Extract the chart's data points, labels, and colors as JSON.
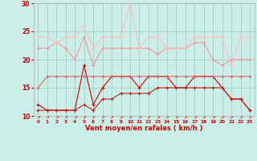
{
  "x": [
    0,
    1,
    2,
    3,
    4,
    5,
    6,
    7,
    8,
    9,
    10,
    11,
    12,
    13,
    14,
    15,
    16,
    17,
    18,
    19,
    20,
    21,
    22,
    23
  ],
  "line1": [
    12,
    11,
    11,
    11,
    11,
    19,
    12,
    15,
    17,
    17,
    17,
    15,
    17,
    17,
    17,
    15,
    15,
    17,
    17,
    17,
    15,
    13,
    13,
    11
  ],
  "line2": [
    11,
    11,
    11,
    11,
    11,
    12,
    11,
    13,
    13,
    14,
    14,
    14,
    14,
    15,
    15,
    15,
    15,
    15,
    15,
    15,
    15,
    13,
    13,
    11
  ],
  "line3": [
    15,
    17,
    17,
    17,
    17,
    17,
    17,
    17,
    17,
    17,
    17,
    17,
    17,
    17,
    17,
    17,
    17,
    17,
    17,
    17,
    17,
    17,
    17,
    17
  ],
  "line4": [
    22,
    22,
    23,
    22,
    20,
    24,
    19,
    22,
    22,
    22,
    22,
    22,
    22,
    21,
    22,
    22,
    22,
    23,
    23,
    20,
    19,
    20,
    20,
    20
  ],
  "line5": [
    24,
    24,
    23,
    24,
    24,
    26,
    22,
    24,
    24,
    24,
    30,
    22,
    24,
    24,
    22,
    22,
    22,
    24,
    24,
    24,
    24,
    19,
    24,
    24
  ],
  "colors": [
    "#cc0000",
    "#bb2222",
    "#dd6666",
    "#ee9999",
    "#ffbbbb"
  ],
  "ylim": [
    10,
    30
  ],
  "yticks": [
    10,
    15,
    20,
    25,
    30
  ],
  "xlabel": "Vent moyen/en rafales ( km/h )",
  "bg_color": "#cceee8",
  "grid_color": "#99ccbb"
}
